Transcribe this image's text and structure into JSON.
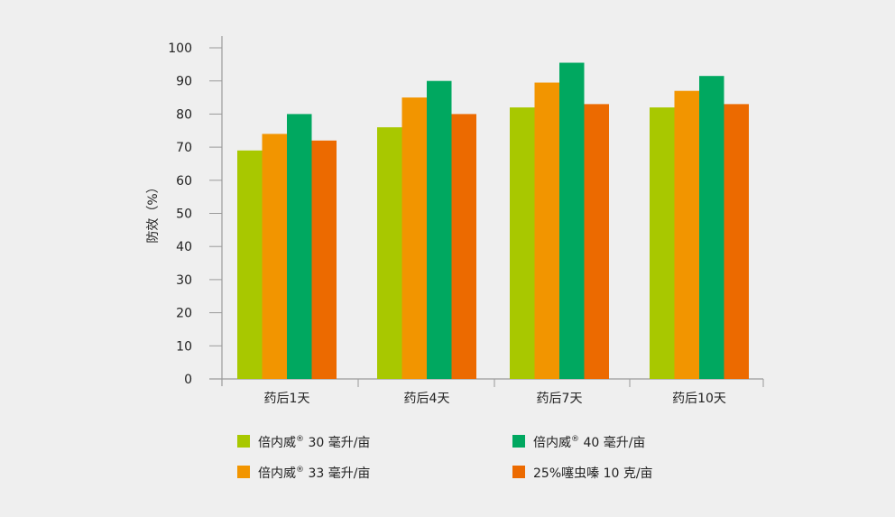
{
  "chart_data": {
    "type": "bar",
    "title": "",
    "xlabel": "",
    "ylabel": "防效（%）",
    "ylim": [
      0,
      100
    ],
    "yticks": [
      0,
      10,
      20,
      30,
      40,
      50,
      60,
      70,
      80,
      90,
      100
    ],
    "grid": false,
    "legend_position": "bottom",
    "categories": [
      "药后1天",
      "药后4天",
      "药后7天",
      "药后10天"
    ],
    "series": [
      {
        "name": "倍内威® 30 毫升/亩",
        "color": "#a8c800",
        "values": [
          69,
          76,
          82,
          82
        ]
      },
      {
        "name": "倍内威® 33 毫升/亩",
        "color": "#f29500",
        "values": [
          74,
          85,
          89.5,
          87
        ]
      },
      {
        "name": "倍内威® 40 毫升/亩",
        "color": "#00a860",
        "values": [
          80,
          90,
          95.5,
          91.5
        ]
      },
      {
        "name": "25%噻虫嗪 10 克/亩",
        "color": "#ec6a00",
        "values": [
          72,
          80,
          83,
          83
        ]
      }
    ]
  }
}
